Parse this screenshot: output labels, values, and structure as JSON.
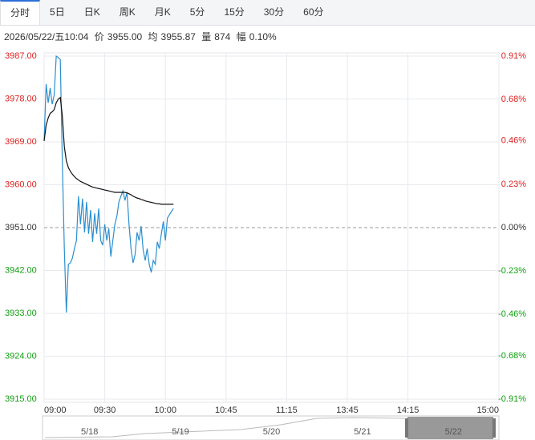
{
  "tabs": [
    "分时",
    "5日",
    "日K",
    "周K",
    "月K",
    "5分",
    "15分",
    "30分",
    "60分"
  ],
  "info": {
    "datetime": "2026/05/22/五10:04",
    "price_label": "价",
    "price": "3955.00",
    "avg_label": "均",
    "avg": "3955.87",
    "volume_label": "量",
    "volume": "874",
    "change_label": "幅",
    "change": "0.10%"
  },
  "chart_data": {
    "type": "line",
    "x": [
      0,
      1,
      2,
      3,
      4,
      5,
      6,
      7,
      8,
      9,
      10,
      11,
      12,
      13,
      14,
      15,
      16,
      17,
      18,
      19,
      20,
      21,
      22,
      23,
      24,
      25,
      26,
      27,
      28,
      29,
      30,
      31,
      32,
      33,
      34,
      35,
      36,
      37,
      38,
      39,
      40,
      41,
      42,
      43,
      44,
      45,
      46,
      47,
      48,
      49,
      50,
      51,
      52,
      53,
      54,
      55,
      56,
      57,
      58,
      59,
      60,
      61,
      62,
      63,
      64
    ],
    "series": [
      {
        "color": "#2b8fcf",
        "values": [
          3969.2,
          3981.1,
          3977.2,
          3980.3,
          3976.9,
          3978.9,
          3987.0,
          3986.7,
          3986.3,
          3965.1,
          3946.6,
          3933.2,
          3943.3,
          3943.6,
          3944.6,
          3946.6,
          3948.3,
          3957.6,
          3951.7,
          3957.1,
          3950.0,
          3956.4,
          3949.7,
          3954.7,
          3948.0,
          3954.0,
          3949.7,
          3955.0,
          3948.3,
          3947.3,
          3951.7,
          3948.3,
          3950.8,
          3944.9,
          3948.3,
          3951.7,
          3953.4,
          3956.4,
          3957.6,
          3958.7,
          3956.7,
          3958.4,
          3951.7,
          3946.6,
          3943.6,
          3945.3,
          3950.0,
          3948.3,
          3951.3,
          3946.3,
          3944.1,
          3946.6,
          3943.3,
          3941.6,
          3944.1,
          3943.3,
          3948.0,
          3946.6,
          3949.7,
          3952.3,
          3948.3,
          3953.0,
          3953.7,
          3954.4,
          3955.0
        ]
      },
      {
        "color": "#111111",
        "values": [
          3969.2,
          3972.5,
          3974.0,
          3975.0,
          3975.3,
          3975.8,
          3977.2,
          3978.0,
          3978.3,
          3974.5,
          3968.0,
          3965.0,
          3963.6,
          3962.8,
          3962.2,
          3961.7,
          3961.3,
          3961.0,
          3960.7,
          3960.5,
          3960.3,
          3960.1,
          3959.9,
          3959.7,
          3959.5,
          3959.4,
          3959.3,
          3959.2,
          3959.1,
          3959.0,
          3958.9,
          3958.8,
          3958.7,
          3958.6,
          3958.5,
          3958.4,
          3958.4,
          3958.4,
          3958.4,
          3958.4,
          3958.4,
          3958.3,
          3958.1,
          3957.9,
          3957.6,
          3957.4,
          3957.2,
          3957.1,
          3956.9,
          3956.8,
          3956.6,
          3956.5,
          3956.4,
          3956.3,
          3956.2,
          3956.1,
          3956.0,
          3956.0,
          3955.9,
          3955.9,
          3955.9,
          3955.9,
          3955.9,
          3955.9,
          3955.9
        ]
      }
    ],
    "xlim": [
      0,
      225
    ],
    "xticks": [
      {
        "value": 0,
        "label": "09:00"
      },
      {
        "value": 30,
        "label": "09:30"
      },
      {
        "value": 60,
        "label": "10:00"
      },
      {
        "value": 90,
        "label": "10:45"
      },
      {
        "value": 120,
        "label": "11:15"
      },
      {
        "value": 150,
        "label": "13:45"
      },
      {
        "value": 180,
        "label": "14:15"
      },
      {
        "value": 225,
        "label": "15:00"
      }
    ],
    "ylim": [
      3915,
      3987
    ],
    "yticks": [
      {
        "value": 3987,
        "label": "3987.00"
      },
      {
        "value": 3978,
        "label": "3978.00"
      },
      {
        "value": 3969,
        "label": "3969.00"
      },
      {
        "value": 3960,
        "label": "3960.00"
      },
      {
        "value": 3951,
        "label": "3951.00"
      },
      {
        "value": 3942,
        "label": "3942.00"
      },
      {
        "value": 3933,
        "label": "3933.00"
      },
      {
        "value": 3924,
        "label": "3924.00"
      },
      {
        "value": 3915,
        "label": "3915.00"
      }
    ],
    "y2lim": [
      -0.91,
      0.91
    ],
    "y2ticks": [
      {
        "value": 0.91,
        "label": "0.91%"
      },
      {
        "value": 0.68,
        "label": "0.68%"
      },
      {
        "value": 0.46,
        "label": "0.46%"
      },
      {
        "value": 0.23,
        "label": "0.23%"
      },
      {
        "value": 0,
        "label": "0.00%"
      },
      {
        "value": -0.23,
        "label": "-0.23%"
      },
      {
        "value": -0.46,
        "label": "-0.46%"
      },
      {
        "value": -0.68,
        "label": "-0.68%"
      },
      {
        "value": -0.91,
        "label": "-0.91%"
      }
    ],
    "grid": true,
    "navigator_dates": [
      "5/18",
      "5/19",
      "5/20",
      "5/21",
      "5/22"
    ]
  }
}
